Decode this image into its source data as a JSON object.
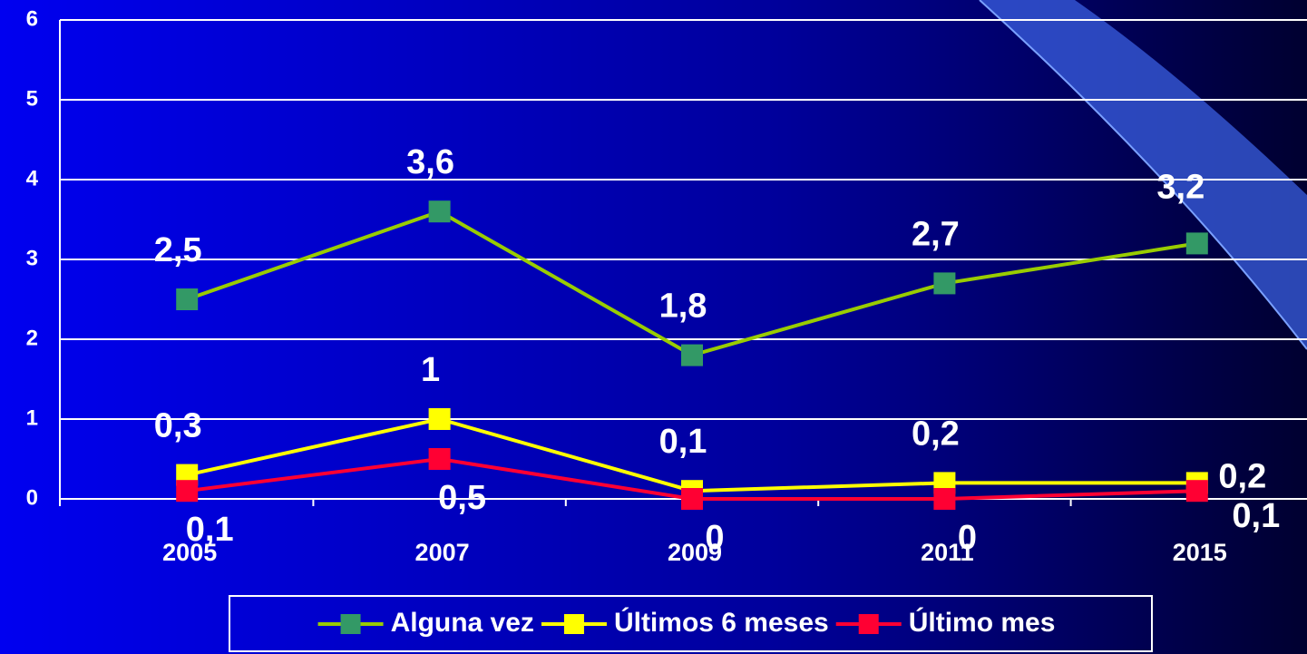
{
  "chart_data": {
    "type": "line",
    "categories": [
      "2005",
      "2007",
      "2009",
      "2011",
      "2015"
    ],
    "series": [
      {
        "name": "Alguna vez",
        "color": "#99cc00",
        "marker_color": "#339966",
        "values": [
          2.5,
          3.6,
          1.8,
          2.7,
          3.2
        ],
        "value_labels": [
          "2,5",
          "3,6",
          "1,8",
          "2,7",
          "3,2"
        ]
      },
      {
        "name": "Últimos 6 meses",
        "color": "#ffff00",
        "marker_color": "#ffff00",
        "values": [
          0.3,
          1,
          0.1,
          0.2,
          0.2
        ],
        "value_labels": [
          "0,3",
          "1",
          "0,1",
          "0,2",
          "0,2"
        ]
      },
      {
        "name": "Último mes",
        "color": "#ff0033",
        "marker_color": "#ff0033",
        "values": [
          0.1,
          0.5,
          0,
          0,
          0.1
        ],
        "value_labels": [
          "0,1",
          "0,5",
          "0",
          "0",
          "0,1"
        ]
      }
    ],
    "ylim": [
      0,
      6
    ],
    "yticks": [
      0,
      1,
      2,
      3,
      4,
      5,
      6
    ],
    "grid": true,
    "legend": "bottom"
  }
}
